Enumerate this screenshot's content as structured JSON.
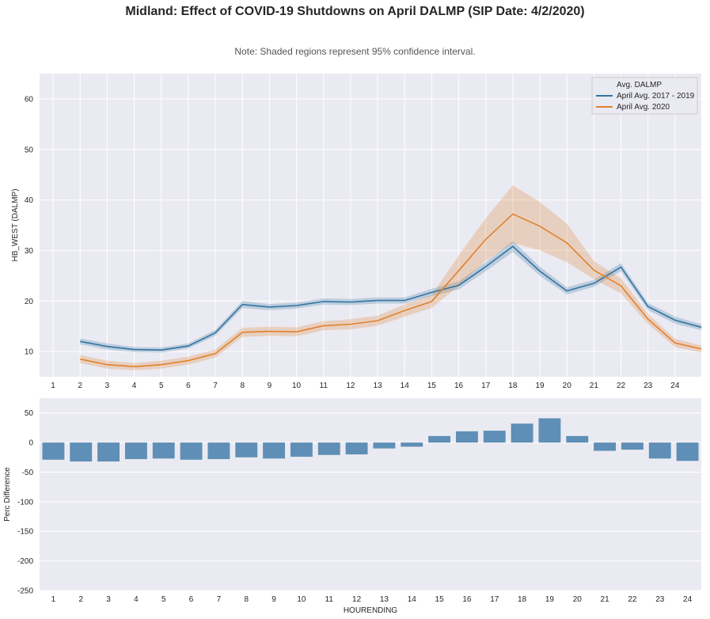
{
  "title": "Midland: Effect of COVID-19 Shutdowns on April DALMP (SIP Date: 4/2/2020)",
  "note": "Note: Shaded regions represent 95% confidence interval.",
  "chart_data": [
    {
      "type": "line",
      "ylabel": "HB_WEST (DALMP)",
      "xlabel": "",
      "ylim": [
        5,
        65
      ],
      "xlim": [
        0.5,
        24.97
      ],
      "xticks": [
        1,
        2,
        3,
        4,
        5,
        6,
        7,
        8,
        9,
        10,
        11,
        12,
        13,
        14,
        15,
        16,
        17,
        18,
        19,
        20,
        21,
        22,
        23,
        24
      ],
      "yticks": [
        10,
        20,
        30,
        40,
        50,
        60
      ],
      "grid": true,
      "legend": {
        "title": "Avg. DALMP",
        "placement": "top-right"
      },
      "x": [
        2,
        3,
        4,
        5,
        6,
        7,
        8,
        9,
        10,
        11,
        12,
        13,
        14,
        15,
        16,
        17,
        18,
        19,
        20,
        21,
        22,
        23,
        24,
        24.97
      ],
      "series": [
        {
          "name": "April Avg. 2017 - 2019",
          "color": "#3274a1",
          "values": [
            12,
            11,
            10.4,
            10.3,
            11.1,
            13.7,
            19.3,
            18.8,
            19.1,
            19.9,
            19.8,
            20.1,
            20.1,
            21.7,
            23.1,
            26.8,
            30.8,
            25.9,
            22,
            23.5,
            26.7,
            18.9,
            16.2,
            14.8
          ],
          "ci": [
            0.6,
            0.6,
            0.5,
            0.5,
            0.5,
            0.6,
            0.7,
            0.6,
            0.6,
            0.6,
            0.6,
            0.6,
            0.6,
            0.7,
            0.8,
            0.9,
            1.1,
            0.9,
            0.7,
            0.7,
            0.8,
            0.7,
            0.7,
            0.6
          ]
        },
        {
          "name": "April Avg. 2020",
          "color": "#e1812c",
          "values": [
            8.5,
            7.4,
            7,
            7.4,
            8.2,
            9.6,
            13.8,
            14,
            13.9,
            15.1,
            15.4,
            16.1,
            18.1,
            19.9,
            26,
            32.2,
            37.2,
            34.8,
            31.5,
            26.1,
            23,
            16.4,
            11.7,
            10.5
          ],
          "ci": [
            0.8,
            0.8,
            0.7,
            0.8,
            0.8,
            0.8,
            0.9,
            0.9,
            0.9,
            0.9,
            1,
            1,
            1.2,
            1.3,
            3,
            4.2,
            5.7,
            4.8,
            3.8,
            1.8,
            1.5,
            1,
            0.8,
            0.7
          ]
        }
      ]
    },
    {
      "type": "bar",
      "ylabel": "Perc Difference",
      "xlabel": "HOURENDING",
      "ylim": [
        -250,
        75
      ],
      "yticks": [
        50,
        0,
        -50,
        -100,
        -150,
        -200,
        -250
      ],
      "grid": true,
      "color": "#5f8fb6",
      "categories": [
        "1",
        "2",
        "3",
        "4",
        "5",
        "6",
        "7",
        "8",
        "9",
        "10",
        "11",
        "12",
        "13",
        "14",
        "15",
        "16",
        "17",
        "18",
        "19",
        "20",
        "21",
        "22",
        "23",
        "24"
      ],
      "values": [
        -29,
        -32,
        -32,
        -28,
        -27,
        -29,
        -28,
        -25,
        -27,
        -24,
        -21,
        -20,
        -10,
        -7,
        11,
        19,
        20,
        32,
        41,
        11,
        -14,
        -12,
        -27,
        -31
      ]
    }
  ]
}
